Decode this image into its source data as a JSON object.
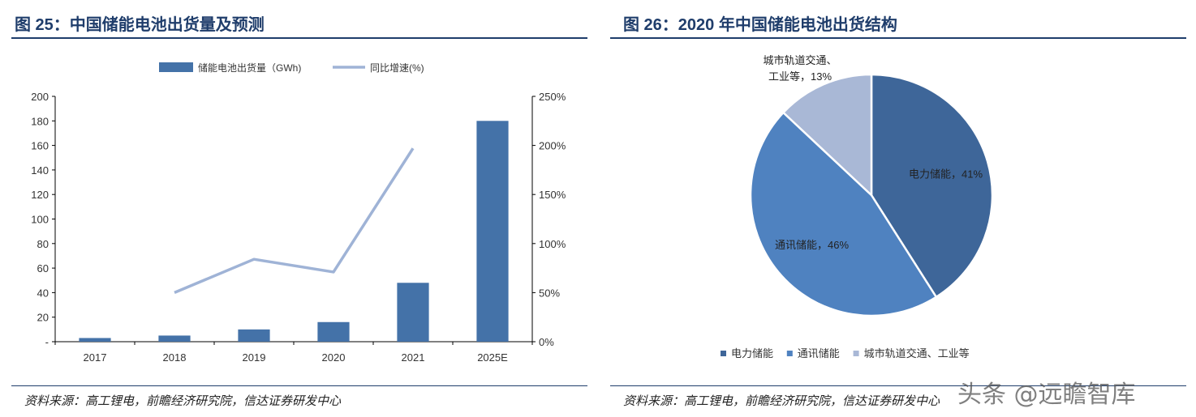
{
  "left": {
    "title": "图 25：中国储能电池出货量及预测",
    "source": "资料来源：高工锂电，前瞻经济研究院，信达证券研发中心"
  },
  "right": {
    "title": "图 26：2020 年中国储能电池出货结构",
    "source": "资料来源：高工锂电，前瞻经济研究院，信达证券研发中心"
  },
  "watermark": "头条 @远瞻智库",
  "colors": {
    "bar": "#4472a8",
    "line": "#9fb3d6",
    "title": "#1f3d6b",
    "pie": [
      "#3e6699",
      "#4f82c0",
      "#a9b8d6"
    ]
  },
  "chart_data": [
    {
      "type": "bar",
      "categories": [
        "2017",
        "2018",
        "2019",
        "2020",
        "2021",
        "2025E"
      ],
      "series": [
        {
          "name": "储能电池出货量（GWh)",
          "type": "bar",
          "axis": "left",
          "values": [
            3,
            5,
            10,
            16,
            48,
            180
          ]
        },
        {
          "name": "同比增速(%)",
          "type": "line",
          "axis": "right",
          "values": [
            null,
            50,
            84,
            71,
            197,
            null
          ]
        }
      ],
      "ylim": [
        0,
        200
      ],
      "yticks": [
        "-",
        "20",
        "40",
        "60",
        "80",
        "100",
        "120",
        "140",
        "160",
        "180",
        "200"
      ],
      "y2lim": [
        0,
        250
      ],
      "y2ticks": [
        "0%",
        "50%",
        "100%",
        "150%",
        "200%",
        "250%"
      ],
      "legend": "top"
    },
    {
      "type": "pie",
      "slices": [
        {
          "label": "电力储能",
          "value": 41,
          "text": "电力储能，41%"
        },
        {
          "label": "通讯储能",
          "value": 46,
          "text": "通讯储能，46%"
        },
        {
          "label": "城市轨道交通、工业等",
          "value": 13,
          "text_lines": [
            "城市轨道交通、",
            "工业等，13%"
          ]
        }
      ],
      "legend": "bottom"
    }
  ]
}
